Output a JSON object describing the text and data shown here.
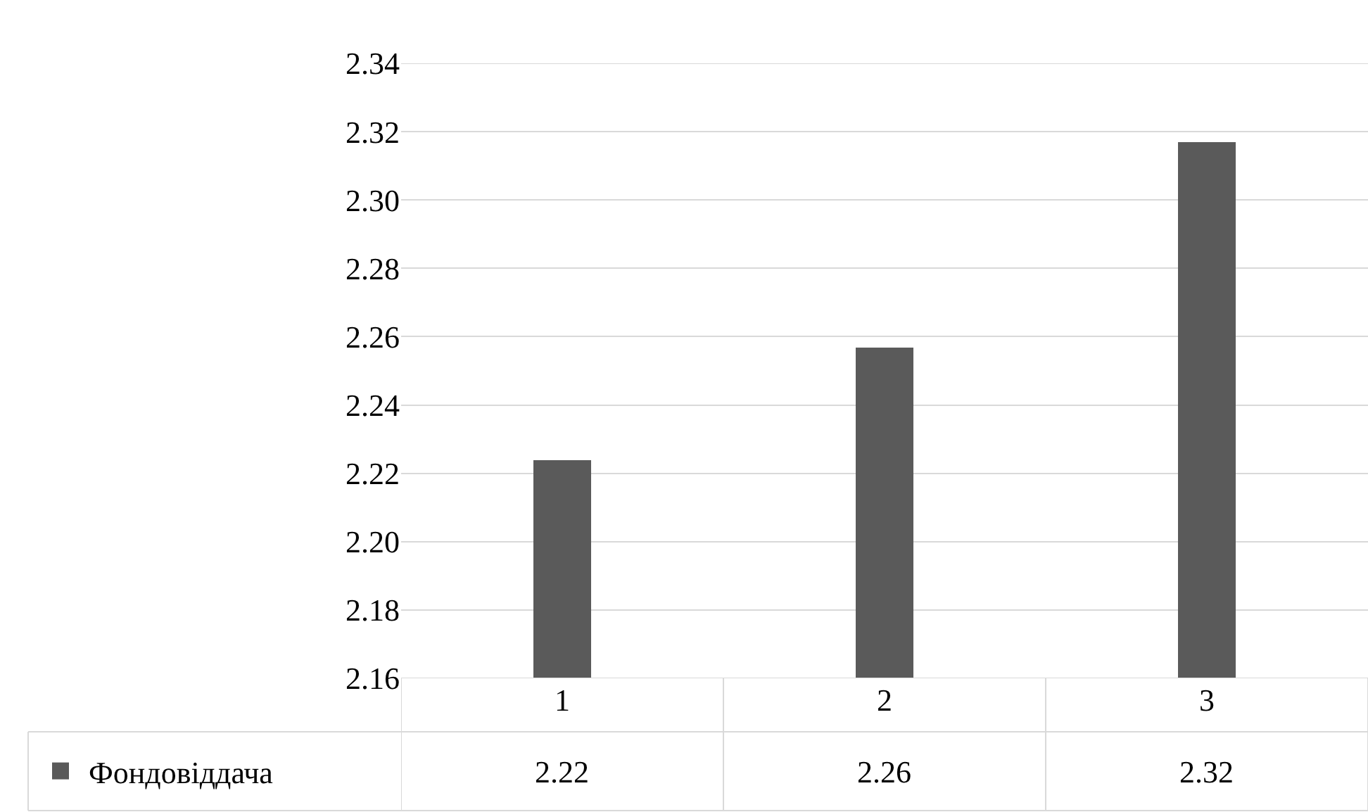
{
  "chart_data": {
    "type": "bar",
    "categories": [
      "1",
      "2",
      "3"
    ],
    "series": [
      {
        "name": "Фондовіддача",
        "color": "#5a5a5a",
        "values": [
          2.224,
          2.257,
          2.317
        ],
        "value_labels": [
          "2.22",
          "2.26",
          "2.32"
        ]
      }
    ],
    "ylim": [
      2.16,
      2.34
    ],
    "yticks": [
      "2.16",
      "2.18",
      "2.20",
      "2.22",
      "2.24",
      "2.26",
      "2.28",
      "2.30",
      "2.32",
      "2.34"
    ],
    "grid": "y",
    "legend": "bottom left"
  }
}
